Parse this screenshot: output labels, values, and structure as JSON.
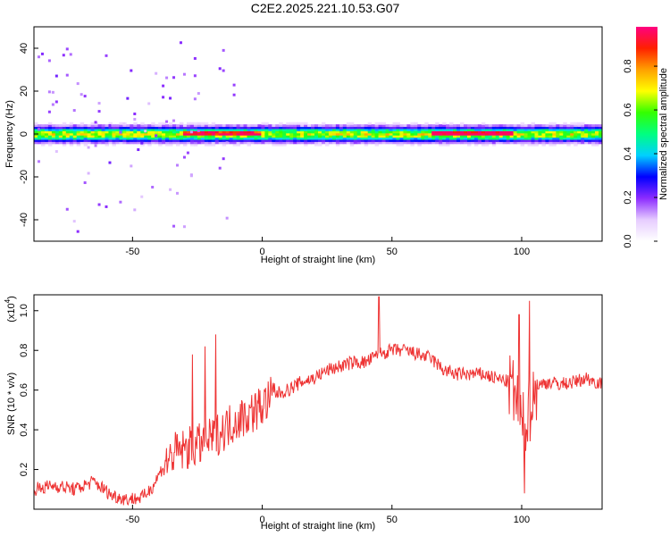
{
  "title": "C2E2.2025.221.10.53.G07",
  "chart_data": [
    {
      "type": "heatmap",
      "name": "spectrogram",
      "xlabel": "Height of straight line (km)",
      "ylabel": "Frequency (Hz)",
      "xlim": [
        -88,
        131
      ],
      "ylim": [
        -50,
        50
      ],
      "xticks": [
        -50,
        0,
        50,
        100
      ],
      "yticks": [
        -40,
        -20,
        0,
        20,
        40
      ],
      "ridge_frequency_hz": 0,
      "hot_segments": [
        {
          "x_start": 65,
          "x_end": 97,
          "amplitude": 0.85
        },
        {
          "x_start": -30,
          "x_end": 0,
          "amplitude": 0.7
        }
      ],
      "colorbar": {
        "label": "Normalized spectral amplitude",
        "range": [
          0.0,
          0.98
        ],
        "ticks": [
          0.0,
          0.2,
          0.4,
          0.6,
          0.8
        ],
        "tick_labels": [
          "0.0",
          "0.2",
          "0.4",
          "0.6",
          "0.8"
        ],
        "colors": [
          "#ffffff",
          "#e6ccff",
          "#8c2cff",
          "#0000ff",
          "#00d0ff",
          "#00ff80",
          "#33ff00",
          "#ffff00",
          "#ffa000",
          "#ff2000",
          "#ff0080"
        ]
      }
    },
    {
      "type": "line",
      "name": "snr",
      "xlabel": "Height of straight line (km)",
      "ylabel": "SNR (10 * v/v)",
      "y_multiplier": "(x10",
      "y_multiplier_exp": "4",
      "xlim": [
        -88,
        131
      ],
      "ylim": [
        0,
        1.08
      ],
      "xticks": [
        -50,
        0,
        50,
        100
      ],
      "yticks": [
        0.2,
        0.4,
        0.6,
        0.8,
        1.0
      ],
      "ytick_labels": [
        "0.2",
        "0.4",
        "0.6",
        "0.8",
        "1.0"
      ],
      "line_color": "#ee3333",
      "trend": {
        "x": [
          -88,
          -80,
          -72,
          -65,
          -58,
          -52,
          -46,
          -42,
          -38,
          -34,
          -30,
          -25,
          -20,
          -15,
          -10,
          -5,
          0,
          5,
          10,
          15,
          20,
          25,
          30,
          35,
          40,
          45,
          50,
          55,
          60,
          65,
          70,
          75,
          80,
          85,
          90,
          95,
          98,
          100,
          103,
          106,
          110,
          115,
          120,
          125,
          131
        ],
        "y": [
          0.1,
          0.12,
          0.1,
          0.14,
          0.07,
          0.05,
          0.06,
          0.12,
          0.22,
          0.28,
          0.3,
          0.32,
          0.35,
          0.4,
          0.45,
          0.48,
          0.52,
          0.58,
          0.6,
          0.64,
          0.66,
          0.7,
          0.72,
          0.74,
          0.74,
          0.78,
          0.8,
          0.8,
          0.78,
          0.76,
          0.7,
          0.68,
          0.68,
          0.68,
          0.66,
          0.64,
          0.55,
          0.4,
          0.5,
          0.62,
          0.64,
          0.63,
          0.64,
          0.66,
          0.63
        ]
      },
      "peaks": [
        {
          "x": -27,
          "y": 0.78
        },
        {
          "x": -22,
          "y": 0.82
        },
        {
          "x": -18,
          "y": 0.88
        },
        {
          "x": 45,
          "y": 1.07
        },
        {
          "x": 99,
          "y": 0.98
        },
        {
          "x": 103,
          "y": 1.05
        },
        {
          "x": 101,
          "y": 0.08
        }
      ]
    }
  ]
}
